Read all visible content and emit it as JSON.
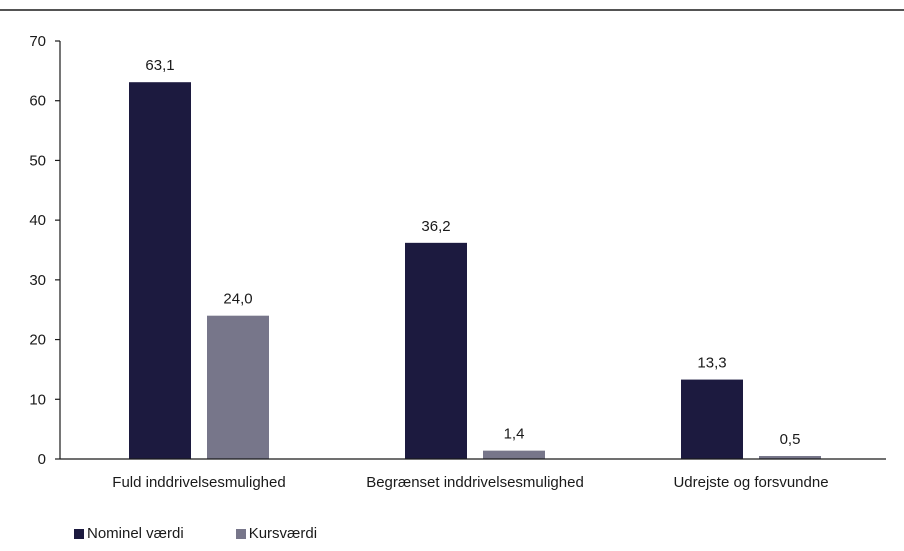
{
  "chart_data": {
    "type": "bar",
    "categories": [
      "Fuld inddrivelsesmulighed",
      "Begrænset inddrivelsesmulighed",
      "Udrejste og forsvundne"
    ],
    "series": [
      {
        "name": "Nominel værdi",
        "values": [
          63.1,
          36.2,
          13.3
        ],
        "labels": [
          "63,1",
          "36,2",
          "13,3"
        ],
        "color": "#1c1a3f"
      },
      {
        "name": "Kursværdi",
        "values": [
          24.0,
          1.4,
          0.5
        ],
        "labels": [
          "24,0",
          "1,4",
          "0,5"
        ],
        "color": "#77768a"
      }
    ],
    "yticks": [
      "0",
      "10",
      "20",
      "30",
      "40",
      "50",
      "60",
      "70"
    ],
    "ylim": [
      0,
      70
    ],
    "grid": false,
    "legend_position": "bottom-left"
  }
}
